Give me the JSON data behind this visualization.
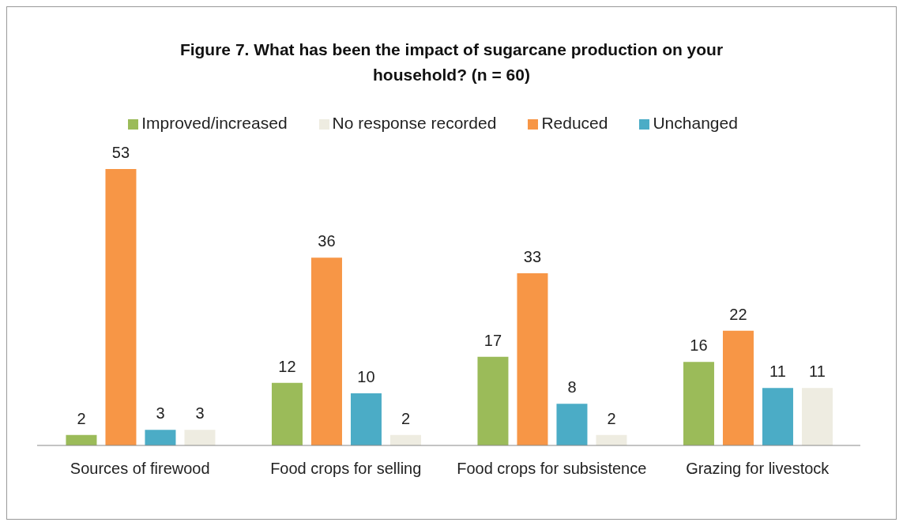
{
  "chart_data": {
    "type": "bar",
    "title": "Figure 7. What has been the impact of sugarcane production on your household? (n = 60)",
    "categories": [
      "Sources of firewood",
      "Food crops for selling",
      "Food crops for subsistence",
      "Grazing for livestock"
    ],
    "series": [
      {
        "name": "Improved/increased",
        "color": "#9bbb59",
        "values": [
          2,
          12,
          17,
          16
        ]
      },
      {
        "name": "Reduced",
        "color": "#f79646",
        "values": [
          53,
          36,
          33,
          22
        ]
      },
      {
        "name": "Unchanged",
        "color": "#4bacc6",
        "values": [
          3,
          10,
          8,
          11
        ]
      },
      {
        "name": "No response recorded",
        "color": "#eeece1",
        "values": [
          3,
          2,
          2,
          11
        ]
      }
    ],
    "data_labels": true,
    "legend": "top",
    "grid": false
  }
}
